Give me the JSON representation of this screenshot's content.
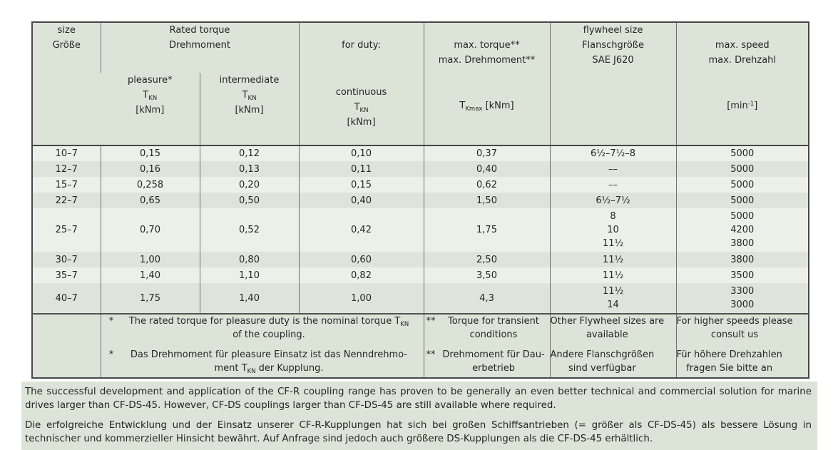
{
  "colors": {
    "sage_background": "#dce3d7",
    "row_stripe_light": "#edf0e8",
    "row_stripe_mid": "#dfe4da",
    "border_dark": "#474747",
    "border_light": "#6f6f6f",
    "text": "#262626"
  },
  "table": {
    "header": {
      "size": "size\nGröße",
      "rated": "Rated torque\nDrehmoment",
      "pleasure": "pleasure*\nT_{KN}\n[kNm]",
      "intermediate": "intermediate\nT_{KN}\n[kNm]",
      "duty_top": "for duty:",
      "duty_bottom": "continuous\nT_{KN}\n[kNm]",
      "max_torque_top": "max. torque**\nmax. Drehmoment**",
      "max_torque_bottom": "T_{Kmax} [kNm]",
      "flywheel": "flywheel size\nFlanschgröße\nSAE J620",
      "speed_top": "max. speed\nmax. Drehzahl",
      "speed_bottom": "[min^{-1}]"
    },
    "rows": [
      {
        "size": "10–7",
        "pleasure": "0,15",
        "intermediate": "0,12",
        "continuous": "0,10",
        "max_torque": "0,37",
        "flywheel": "6½–7½–8",
        "speed": "5000"
      },
      {
        "size": "12–7",
        "pleasure": "0,16",
        "intermediate": "0,13",
        "continuous": "0,11",
        "max_torque": "0,40",
        "flywheel": "––",
        "speed": "5000"
      },
      {
        "size": "15–7",
        "pleasure": "0,258",
        "intermediate": "0,20",
        "continuous": "0,15",
        "max_torque": "0,62",
        "flywheel": "––",
        "speed": "5000"
      },
      {
        "size": "22–7",
        "pleasure": "0,65",
        "intermediate": "0,50",
        "continuous": "0,40",
        "max_torque": "1,50",
        "flywheel": "6½–7½",
        "speed": "5000"
      },
      {
        "size": "25–7",
        "pleasure": "0,70",
        "intermediate": "0,52",
        "continuous": "0,42",
        "max_torque": "1,75",
        "flywheel": "8\n10\n11½",
        "speed": "5000\n4200\n3800"
      },
      {
        "size": "30–7",
        "pleasure": "1,00",
        "intermediate": "0,80",
        "continuous": "0,60",
        "max_torque": "2,50",
        "flywheel": "11½",
        "speed": "3800"
      },
      {
        "size": "35–7",
        "pleasure": "1,40",
        "intermediate": "1,10",
        "continuous": "0,82",
        "max_torque": "3,50",
        "flywheel": "11½",
        "speed": "3500"
      },
      {
        "size": "40–7",
        "pleasure": "1,75",
        "intermediate": "1,40",
        "continuous": "1,00",
        "max_torque": "4,3",
        "flywheel": "11½\n14",
        "speed": "3300\n3000"
      }
    ],
    "footnotes": {
      "torque": [
        {
          "marker": "*",
          "text": "The rated torque for pleasure duty is the nominal torque T_{KN}\nof the coupling."
        },
        {
          "marker": "*",
          "text": "Das Drehmoment für pleasure Einsatz ist das Nenndrehmo-\nment T_{KN} der Kupplung."
        }
      ],
      "max_torque": [
        {
          "marker": "**",
          "text": "Torque for transient\nconditions"
        },
        {
          "marker": "**",
          "text": "Drehmoment für Dau-\nerbetrieb"
        }
      ],
      "flywheel": [
        "Other Flywheel sizes are\navailable",
        "Andere Flanschgrößen\nsind verfügbar"
      ],
      "speed": [
        "For higher speeds please\nconsult us",
        "Für höhere Drehzahlen\nfragen Sie bitte an"
      ]
    }
  },
  "notes": {
    "en": "The successful development and application of the CF-R coupling range has proven to be generally an even better technical and commercial solution for marine drives larger than CF-DS-45. However, CF-DS couplings larger than CF-DS-45 are still available where required.",
    "de": "Die erfolgreiche Entwicklung und der Einsatz unserer CF-R-Kupplungen hat sich bei großen Schiffsantrieben (= größer als CF-DS-45) als bessere Lösung in technischer und kommerzieller Hinsicht bewährt. Auf Anfrage sind jedoch auch größere DS-Kupplungen als die CF-DS-45 erhältlich."
  }
}
